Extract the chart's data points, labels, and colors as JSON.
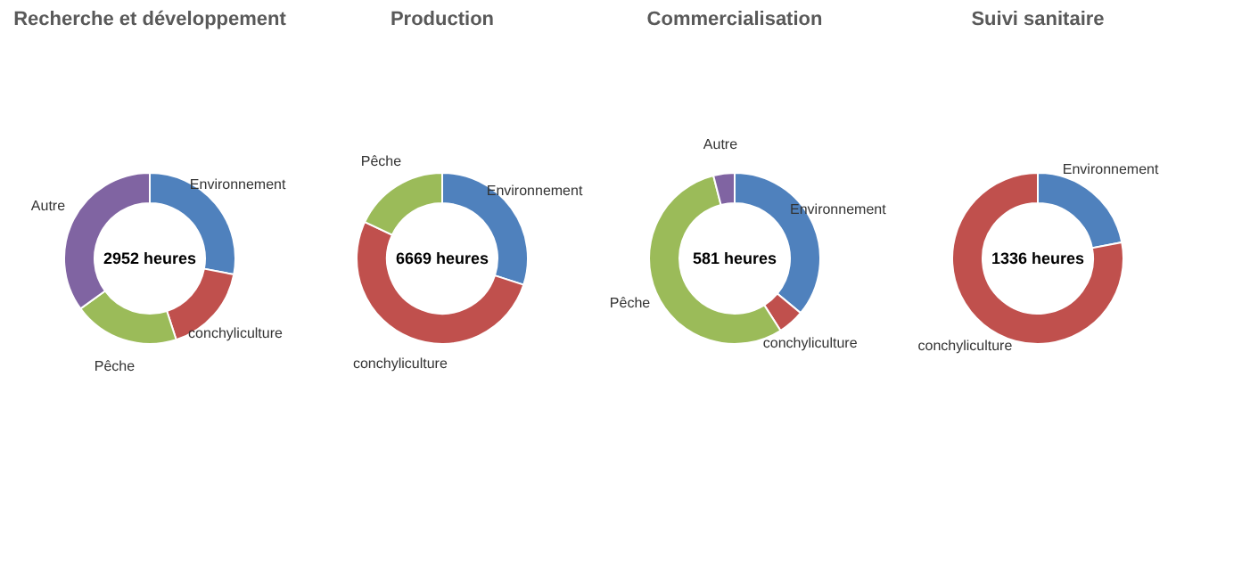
{
  "chart_data": [
    {
      "type": "donut",
      "title": "Recherche et développement",
      "categories": [
        "Environnement",
        "conchyliculture",
        "Pêche",
        "Autre"
      ],
      "values": [
        28,
        17,
        20,
        35
      ],
      "colors": [
        "#4f81bd",
        "#c0504d",
        "#9bbb59",
        "#8064a2"
      ],
      "annotations": [
        "2952 heures"
      ],
      "legend": false
    },
    {
      "type": "donut",
      "title": "Production",
      "categories": [
        "Environnement",
        "conchyliculture",
        "Pêche"
      ],
      "values": [
        30,
        52,
        18
      ],
      "colors": [
        "#4f81bd",
        "#c0504d",
        "#9bbb59"
      ],
      "annotations": [
        "6669 heures"
      ],
      "legend": false
    },
    {
      "type": "donut",
      "title": "Commercialisation",
      "categories": [
        "Environnement",
        "conchyliculture",
        "Pêche",
        "Autre"
      ],
      "values": [
        36,
        5,
        55,
        4
      ],
      "colors": [
        "#4f81bd",
        "#c0504d",
        "#9bbb59",
        "#8064a2"
      ],
      "annotations": [
        "581 heures"
      ],
      "legend": false
    },
    {
      "type": "donut",
      "title": "Suivi sanitaire",
      "categories": [
        "Environnement",
        "conchyliculture"
      ],
      "values": [
        22,
        78
      ],
      "colors": [
        "#4f81bd",
        "#c0504d"
      ],
      "annotations": [
        "1336 heures"
      ],
      "legend": false
    }
  ]
}
